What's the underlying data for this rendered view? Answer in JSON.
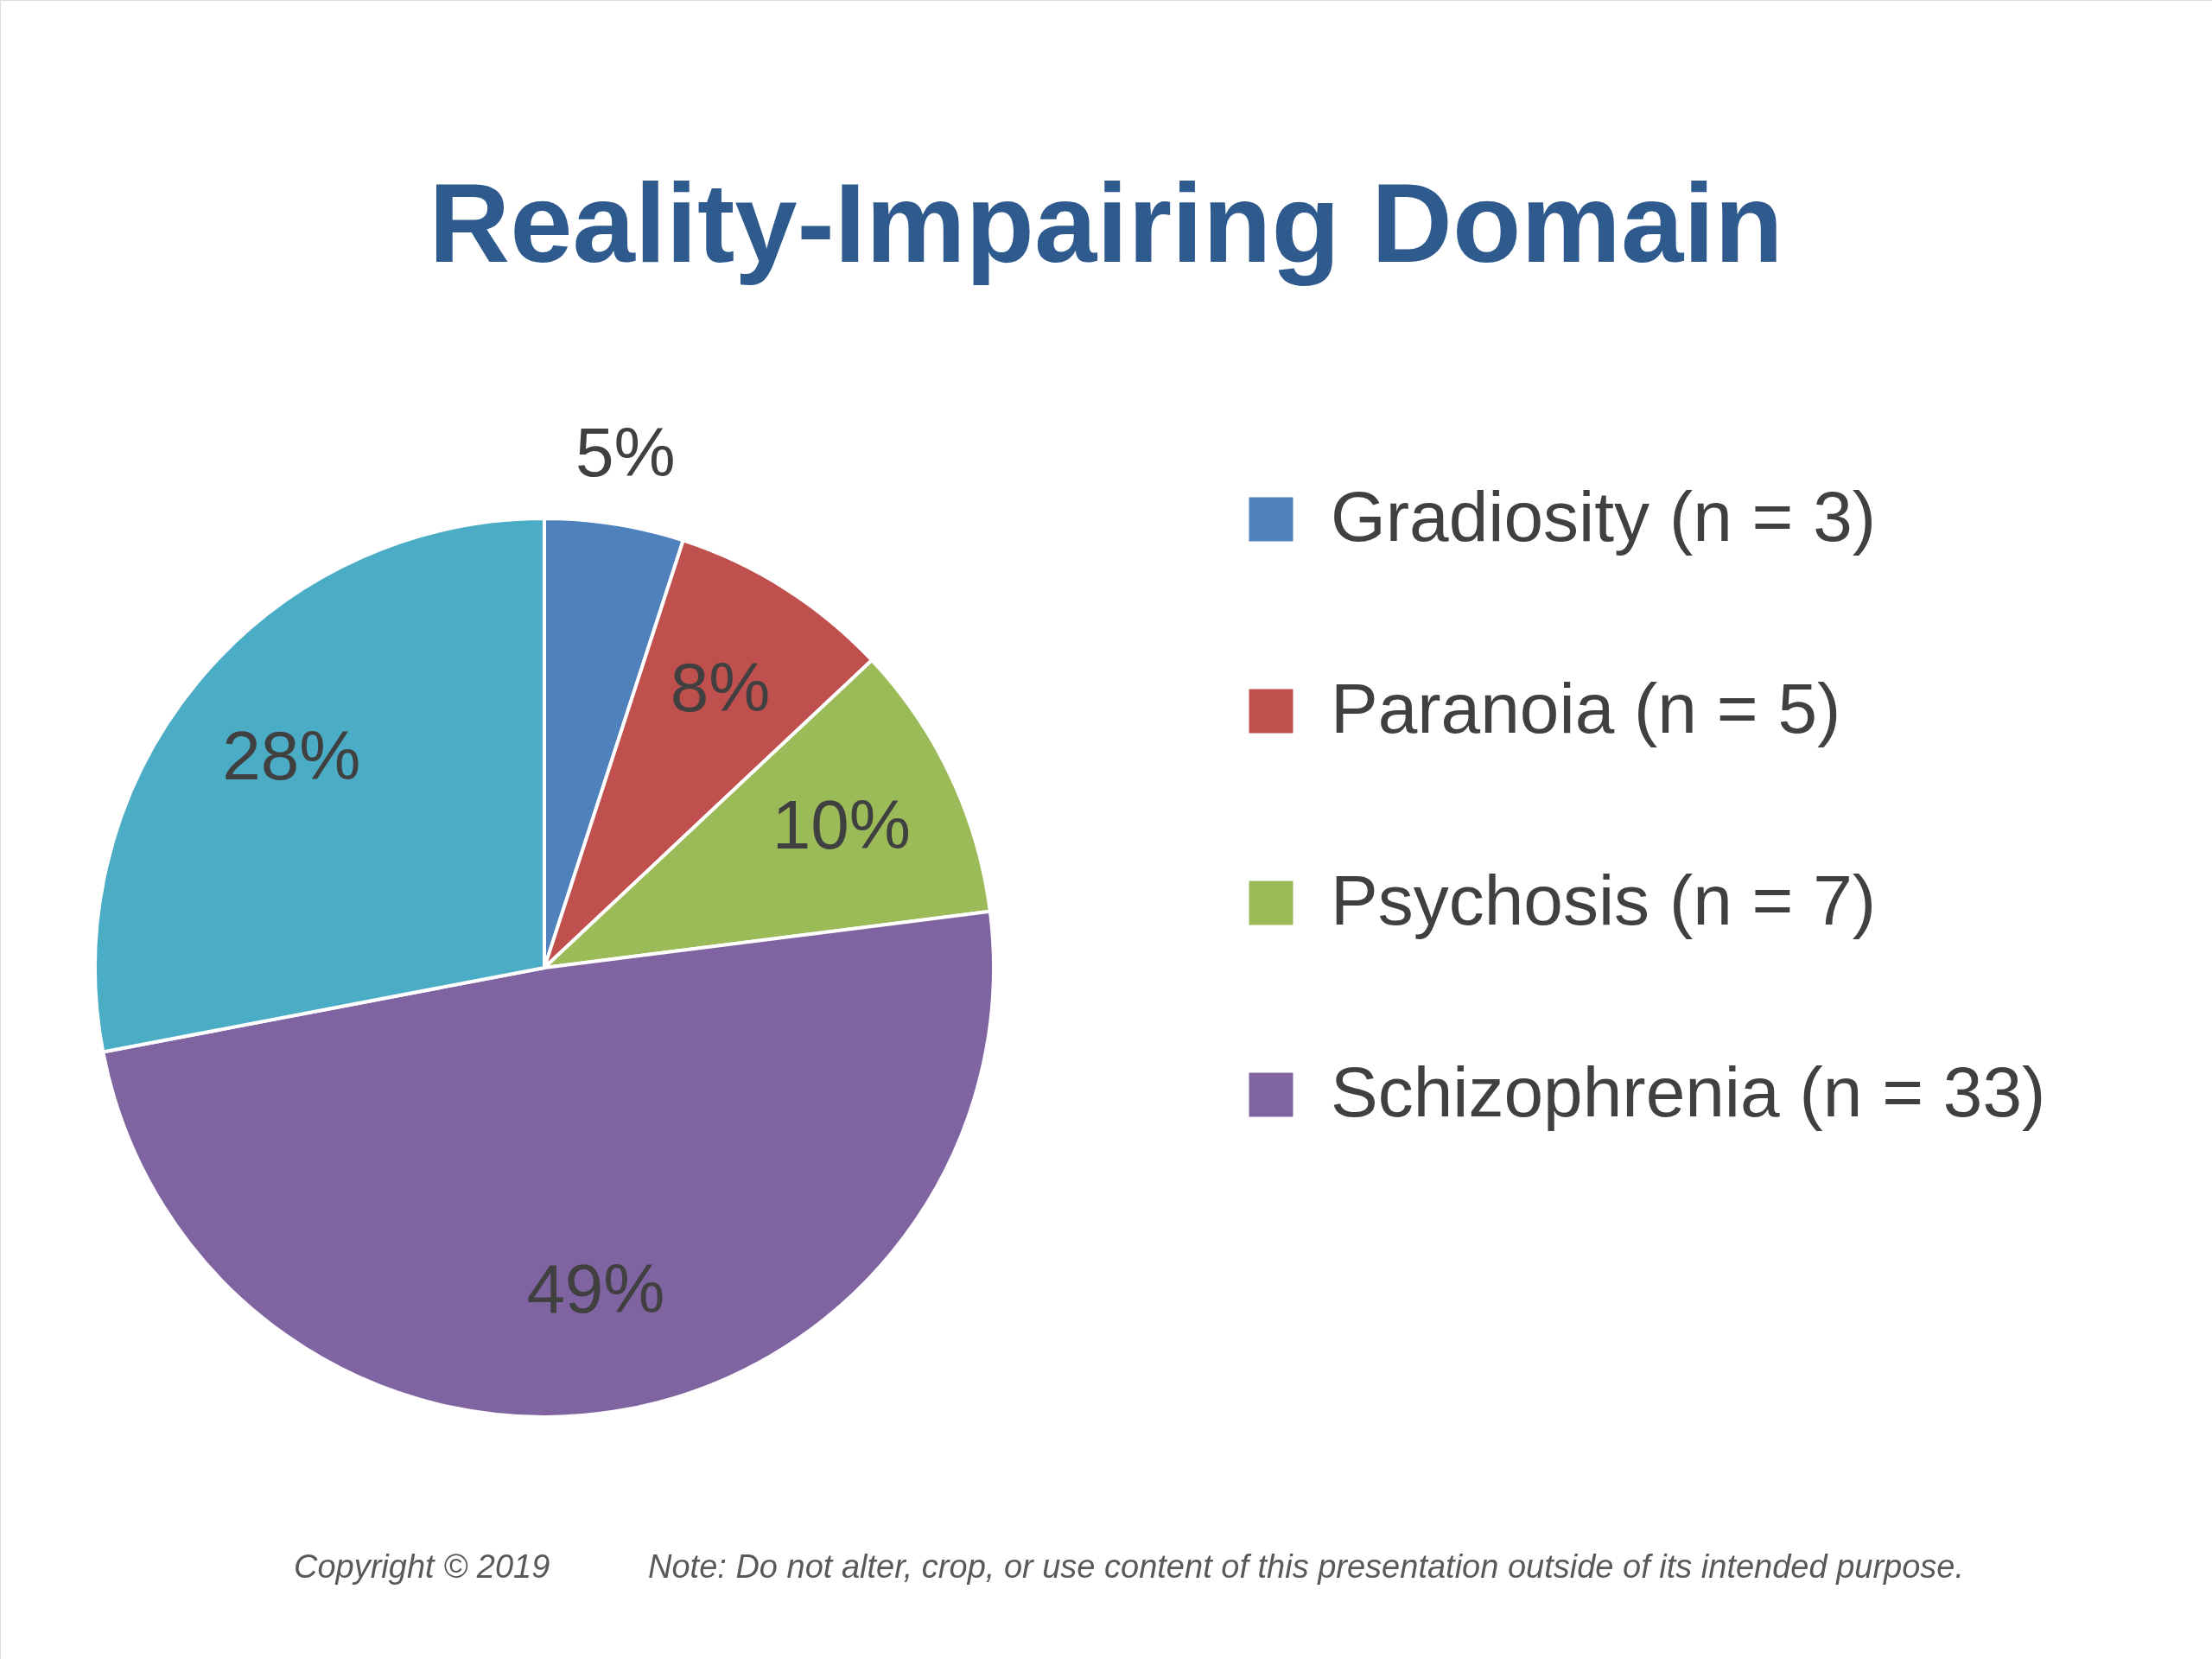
{
  "chart_data": {
    "type": "pie",
    "title": "Reality-Impairing Domain",
    "categories": [
      "Gradiosity (n = 3)",
      "Paranoia (n = 5)",
      "Psychosis (n = 7)",
      "Schizophrenia (n = 33)",
      null
    ],
    "values": [
      5,
      8,
      10,
      49,
      28
    ],
    "value_labels": [
      "5%",
      "8%",
      "10%",
      "49%",
      "28%"
    ],
    "colors": [
      "#4f81bd",
      "#c0504d",
      "#9bbb59",
      "#8064a2",
      "#4bacc6"
    ],
    "legend": "right",
    "annotations": [
      "Copyright © 2019",
      "Note: Do not alter, crop, or use content of this presentation outside of its intended purpose."
    ]
  }
}
